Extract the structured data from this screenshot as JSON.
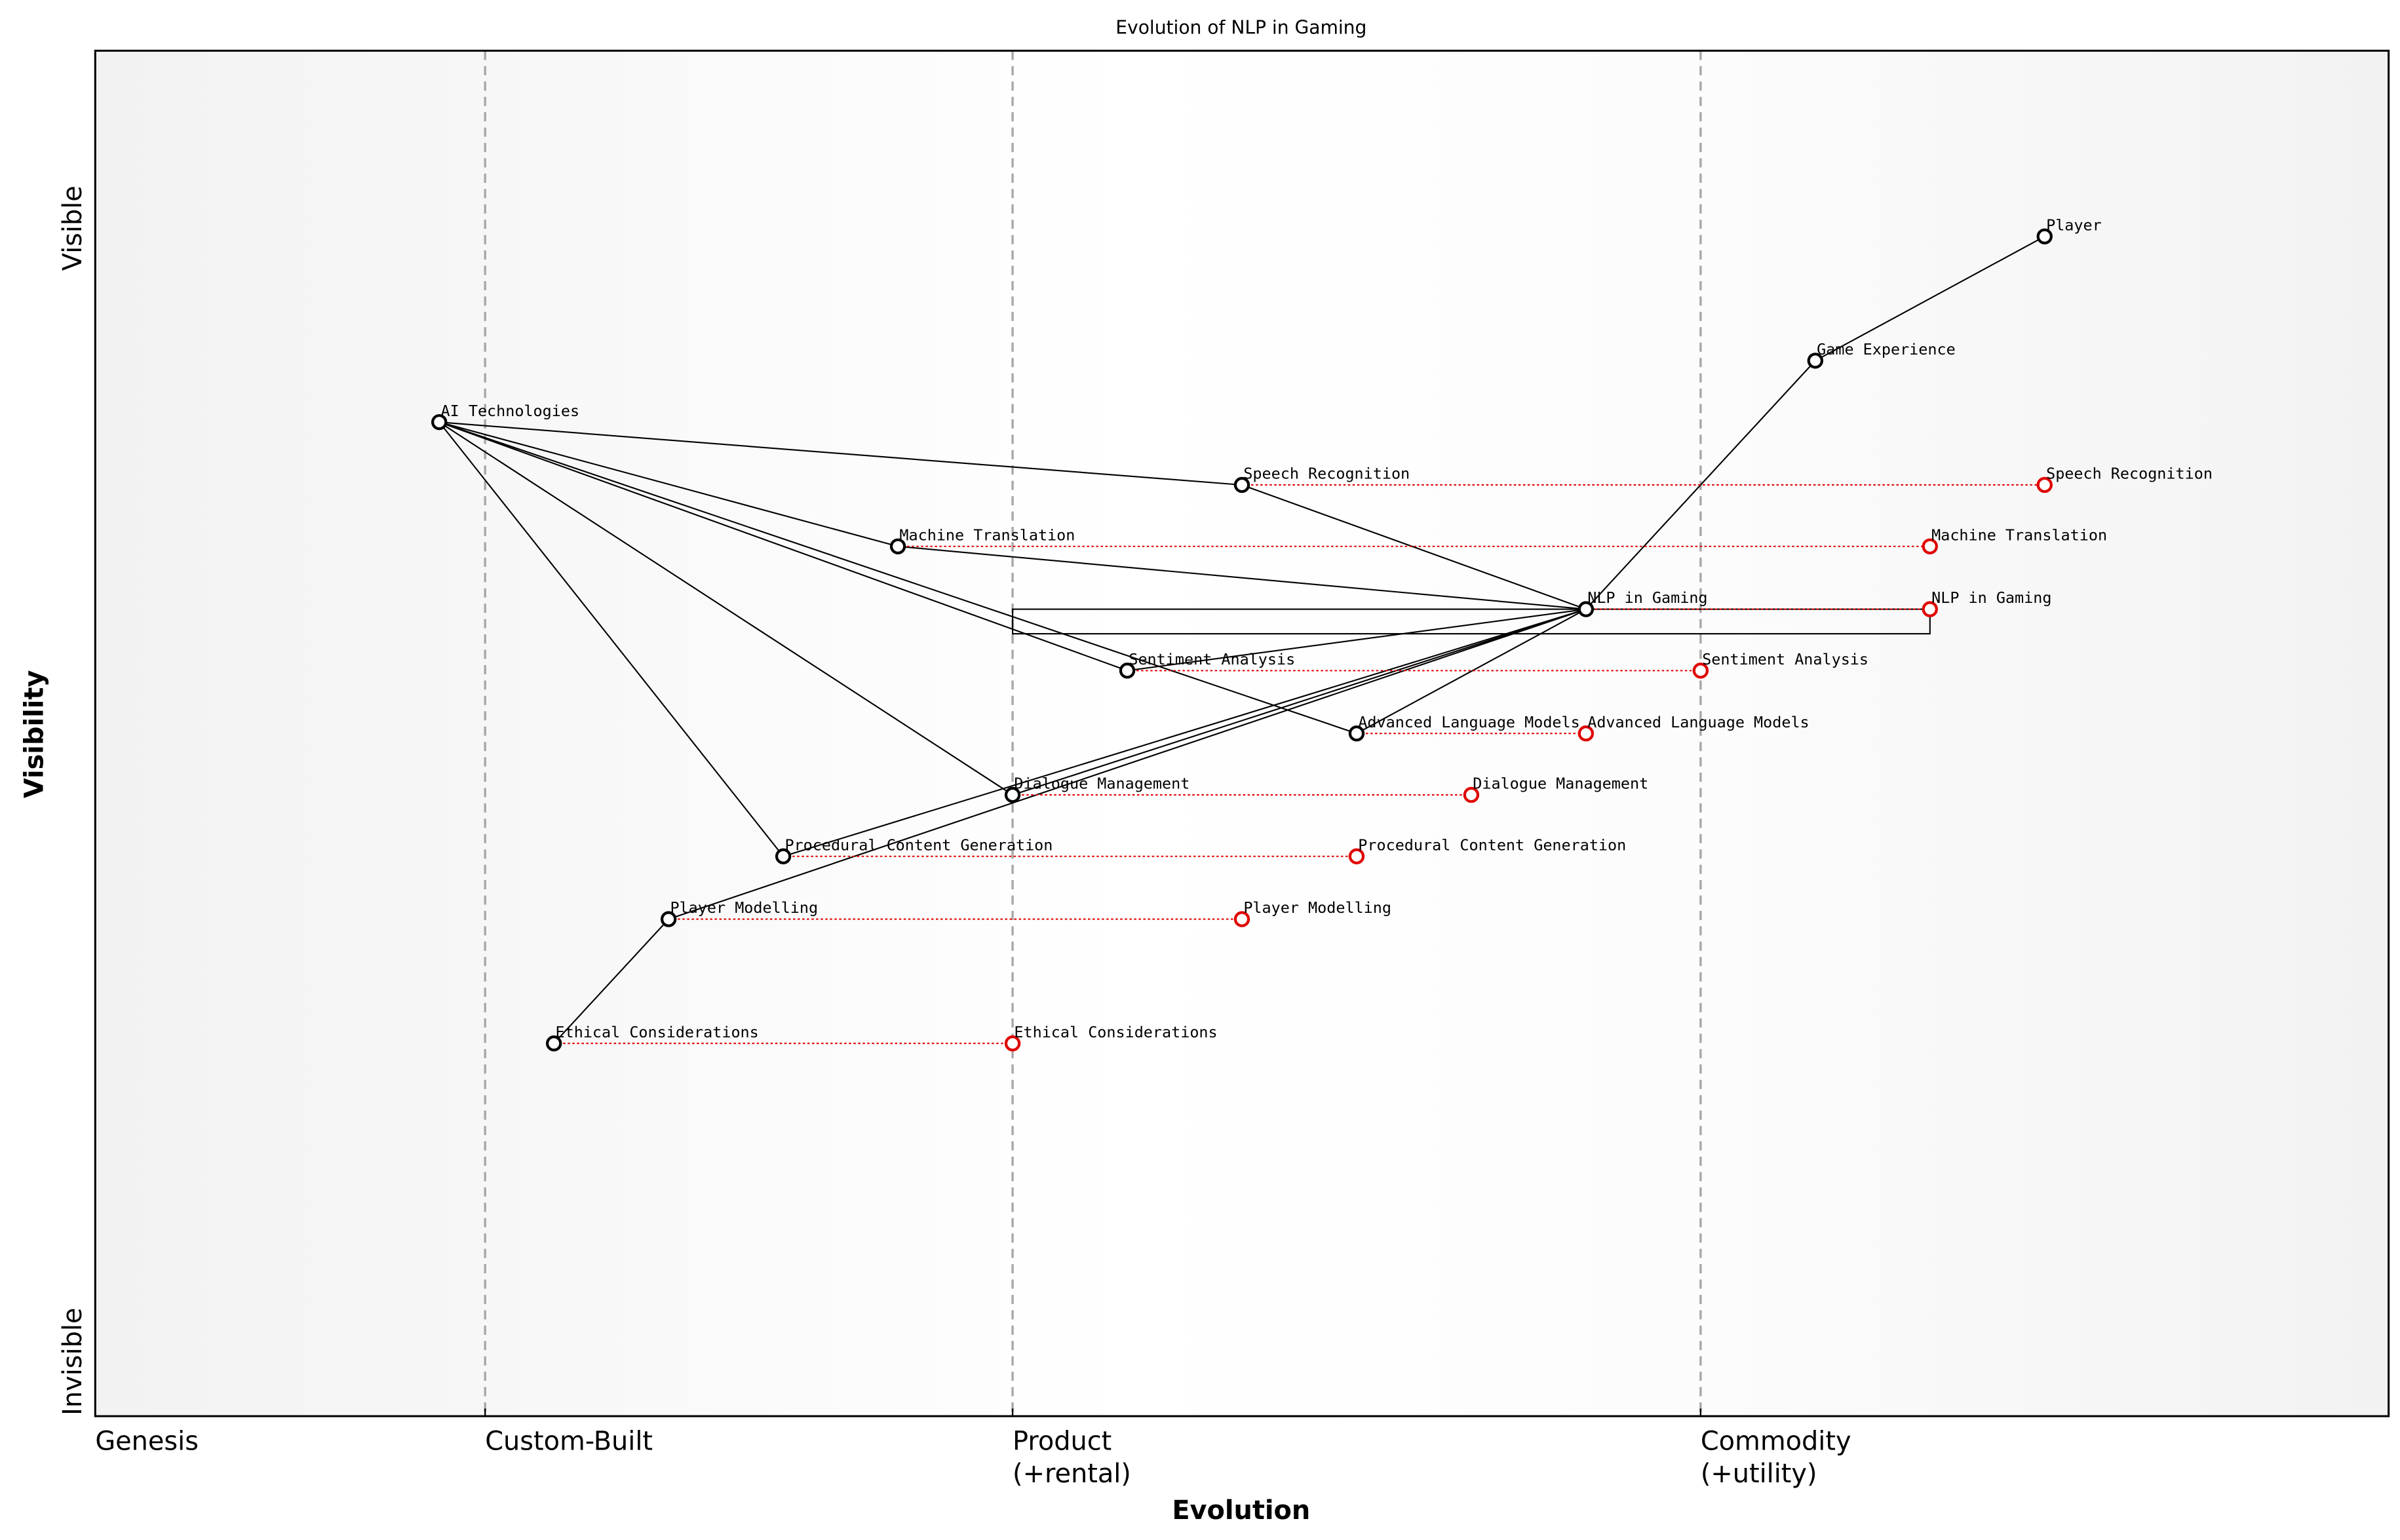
{
  "chart_data": {
    "type": "wardley",
    "title": "Evolution of NLP in Gaming",
    "xlabel": "Evolution",
    "ylabel": "Visibility",
    "xlim": [
      0,
      1
    ],
    "ylim": [
      0,
      1
    ],
    "xticks": [
      {
        "value": 0,
        "label": [
          "Genesis"
        ]
      },
      {
        "value": 0.17,
        "label": [
          "Custom-Built"
        ]
      },
      {
        "value": 0.4,
        "label": [
          "Product",
          "(+rental)"
        ]
      },
      {
        "value": 0.7,
        "label": [
          "Commodity",
          "(+utility)"
        ]
      }
    ],
    "yticks": [
      {
        "value": 0.04,
        "label": "Invisible"
      },
      {
        "value": 0.87,
        "label": "Visible"
      }
    ],
    "components": [
      {
        "name": "Player",
        "evolution": 0.85,
        "visibility": 0.864
      },
      {
        "name": "Game Experience",
        "evolution": 0.75,
        "visibility": 0.773
      },
      {
        "name": "AI Technologies",
        "evolution": 0.15,
        "visibility": 0.728
      },
      {
        "name": "Speech Recognition",
        "evolution": 0.5,
        "visibility": 0.682,
        "evolve_to": 0.85
      },
      {
        "name": "Machine Translation",
        "evolution": 0.35,
        "visibility": 0.637,
        "evolve_to": 0.8
      },
      {
        "name": "NLP in Gaming",
        "evolution": 0.65,
        "visibility": 0.591,
        "evolve_to": 0.8
      },
      {
        "name": "Sentiment Analysis",
        "evolution": 0.45,
        "visibility": 0.546,
        "evolve_to": 0.7
      },
      {
        "name": "Advanced Language Models",
        "evolution": 0.55,
        "visibility": 0.5,
        "evolve_to": 0.65
      },
      {
        "name": "Dialogue Management",
        "evolution": 0.4,
        "visibility": 0.455,
        "evolve_to": 0.6
      },
      {
        "name": "Procedural Content Generation",
        "evolution": 0.3,
        "visibility": 0.41,
        "evolve_to": 0.55
      },
      {
        "name": "Player Modelling",
        "evolution": 0.25,
        "visibility": 0.364,
        "evolve_to": 0.5
      },
      {
        "name": "Ethical Considerations",
        "evolution": 0.2,
        "visibility": 0.273,
        "evolve_to": 0.4
      }
    ],
    "links": [
      [
        "Player",
        "Game Experience"
      ],
      [
        "Game Experience",
        "NLP in Gaming"
      ],
      [
        "NLP in Gaming",
        "Speech Recognition"
      ],
      [
        "NLP in Gaming",
        "Machine Translation"
      ],
      [
        "NLP in Gaming",
        "Sentiment Analysis"
      ],
      [
        "NLP in Gaming",
        "Advanced Language Models"
      ],
      [
        "NLP in Gaming",
        "Dialogue Management"
      ],
      [
        "NLP in Gaming",
        "Procedural Content Generation"
      ],
      [
        "NLP in Gaming",
        "Player Modelling"
      ],
      [
        "AI Technologies",
        "Speech Recognition"
      ],
      [
        "AI Technologies",
        "Machine Translation"
      ],
      [
        "AI Technologies",
        "Sentiment Analysis"
      ],
      [
        "AI Technologies",
        "Advanced Language Models"
      ],
      [
        "AI Technologies",
        "Dialogue Management"
      ],
      [
        "AI Technologies",
        "Procedural Content Generation"
      ],
      [
        "Player Modelling",
        "Ethical Considerations"
      ]
    ],
    "pipelines": [
      {
        "component": "NLP in Gaming",
        "start": 0.4,
        "end": 0.8
      }
    ],
    "color": "#000000",
    "evolve_color": "#e00000"
  }
}
